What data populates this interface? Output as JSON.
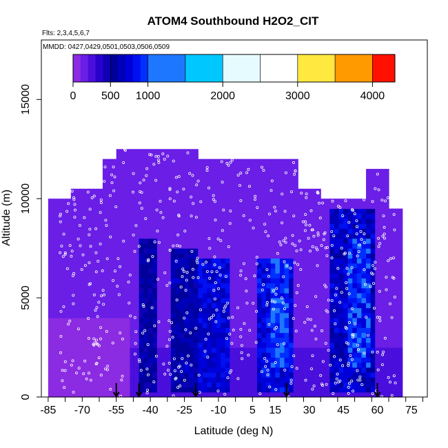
{
  "chart_data": {
    "type": "heatmap",
    "title": "ATOM4 Southbound H2O2_CIT",
    "subtitle_flights": "Flts: 2,3,4,5,6,7",
    "subtitle_dates": "MMDD: 0427,0429,0501,0503,0506,0509",
    "xlabel": "Latitude (deg N)",
    "ylabel": "Altitude (m)",
    "xlim": [
      -88,
      82
    ],
    "ylim": [
      0,
      18000
    ],
    "x_ticks": [
      -85,
      -70,
      -55,
      -40,
      -25,
      -10,
      5,
      15,
      30,
      45,
      60,
      75
    ],
    "x_tick_labels": [
      "-85",
      "-70",
      "-55",
      "-40",
      "-25",
      "-10",
      "5",
      "15",
      "30",
      "45",
      "60",
      "75"
    ],
    "y_ticks": [
      0,
      5000,
      10000,
      15000
    ],
    "y_tick_labels": [
      "0",
      "5000",
      "10000",
      "15000"
    ],
    "colorbar": {
      "range": [
        0,
        4300
      ],
      "ticks": [
        0,
        500,
        1000,
        2000,
        3000,
        4000
      ],
      "tick_labels": [
        "0",
        "500",
        "1000",
        "2000",
        "3000",
        "4000"
      ],
      "bins": [
        0,
        100,
        200,
        300,
        400,
        500,
        600,
        700,
        800,
        900,
        1000,
        1500,
        2000,
        2500,
        3000,
        3500,
        4000,
        4300
      ],
      "colors": [
        "#8b2be2",
        "#6a1ee6",
        "#4a0fdc",
        "#2a00cc",
        "#0e00b4",
        "#00009a",
        "#0000b8",
        "#0000d8",
        "#0010f0",
        "#0030ff",
        "#1e78ff",
        "#00c8ff",
        "#e6fbff",
        "#ffffff",
        "#ffe840",
        "#ff9a00",
        "#ff1000",
        "#9a1010"
      ]
    },
    "coverage": [
      {
        "lat": [
          -85,
          -75
        ],
        "alt": [
          0,
          10000
        ]
      },
      {
        "lat": [
          -75,
          -62
        ],
        "alt": [
          0,
          10500
        ]
      },
      {
        "lat": [
          -62,
          -55
        ],
        "alt": [
          0,
          12000
        ]
      },
      {
        "lat": [
          -55,
          -45
        ],
        "alt": [
          0,
          12500
        ]
      },
      {
        "lat": [
          -45,
          -20
        ],
        "alt": [
          0,
          12500
        ]
      },
      {
        "lat": [
          -20,
          5
        ],
        "alt": [
          0,
          12000
        ]
      },
      {
        "lat": [
          5,
          25
        ],
        "alt": [
          0,
          12000
        ]
      },
      {
        "lat": [
          25,
          35
        ],
        "alt": [
          0,
          10500
        ]
      },
      {
        "lat": [
          35,
          55
        ],
        "alt": [
          0,
          10000
        ]
      },
      {
        "lat": [
          55,
          65
        ],
        "alt": [
          0,
          11500
        ]
      },
      {
        "lat": [
          65,
          70
        ],
        "alt": [
          0,
          9500
        ]
      }
    ],
    "features": [
      {
        "lat": [
          -45,
          -38
        ],
        "alt": [
          300,
          8000
        ],
        "value": 600
      },
      {
        "lat": [
          -30,
          -20
        ],
        "alt": [
          300,
          7500
        ],
        "value": 650
      },
      {
        "lat": [
          -18,
          -5
        ],
        "alt": [
          300,
          7000
        ],
        "value": 800
      },
      {
        "lat": [
          8,
          22
        ],
        "alt": [
          300,
          7000
        ],
        "value": 850
      },
      {
        "lat": [
          14,
          20
        ],
        "alt": [
          1500,
          7000
        ],
        "value": 1000
      },
      {
        "lat": [
          40,
          58
        ],
        "alt": [
          300,
          9500
        ],
        "value": 750
      },
      {
        "lat": [
          47,
          56
        ],
        "alt": [
          1500,
          8000
        ],
        "value": 1000
      }
    ],
    "profile_markers_lat": [
      -55,
      -45,
      -20,
      20,
      60
    ]
  }
}
